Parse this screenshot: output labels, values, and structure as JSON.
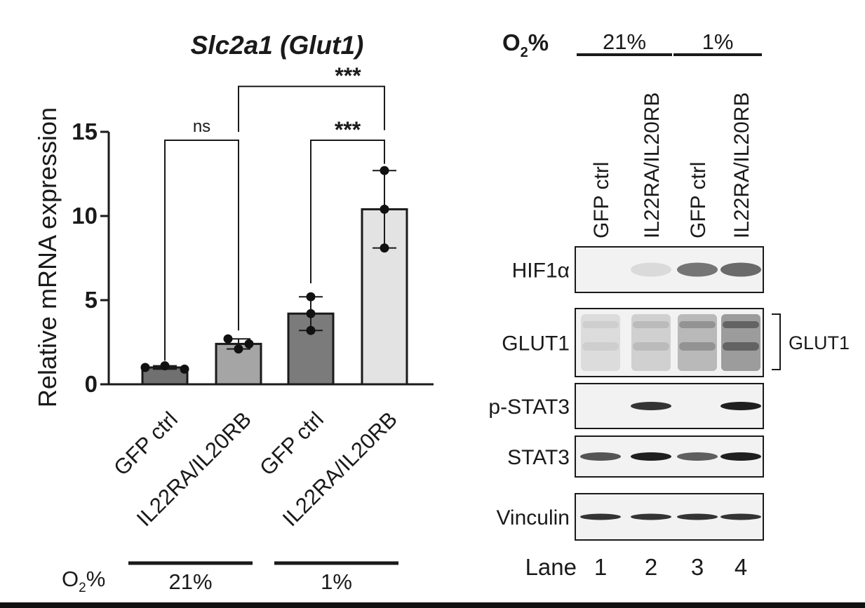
{
  "chart_data": [
    {
      "type": "bar",
      "title": "Slc2a1 (Glut1)",
      "ylabel": "Relative mRNA expression",
      "ylim": [
        0,
        15
      ],
      "yticks": [
        0,
        5,
        10,
        15
      ],
      "grid": false,
      "categories": [
        "GFP ctrl",
        "IL22RA/IL20RB",
        "GFP ctrl",
        "IL22RA/IL20RB"
      ],
      "values": [
        1.0,
        2.4,
        4.2,
        10.4
      ],
      "error_high": [
        1.1,
        2.7,
        5.2,
        12.7
      ],
      "error_low": [
        0.9,
        2.1,
        3.2,
        8.1
      ],
      "points": [
        [
          1.0,
          1.1,
          0.9
        ],
        [
          2.7,
          2.1,
          2.4
        ],
        [
          5.2,
          4.2,
          3.2
        ],
        [
          12.7,
          10.4,
          8.1
        ]
      ],
      "bar_colors": [
        "#707070",
        "#a5a5a5",
        "#7b7b7b",
        "#e3e3e3"
      ],
      "o2_label": "O",
      "o2_sub": "2",
      "o2_unit": "%",
      "groups": [
        {
          "label": "21%",
          "bars": [
            0,
            1
          ]
        },
        {
          "label": "1%",
          "bars": [
            2,
            3
          ]
        }
      ],
      "comparisons": [
        {
          "label": "ns",
          "from": 0,
          "to": 1
        },
        {
          "label": "***",
          "from": 2,
          "to": 3
        },
        {
          "label": "***",
          "from": 1,
          "to": 3
        }
      ]
    }
  ],
  "blot": {
    "o2_label": "O",
    "o2_sub": "2",
    "o2_unit": "%",
    "groups": [
      {
        "label": "21%",
        "lanes": [
          0,
          1
        ]
      },
      {
        "label": "1%",
        "lanes": [
          2,
          3
        ]
      }
    ],
    "lanes": [
      "GFP ctrl",
      "IL22RA/IL20RB",
      "GFP ctrl",
      "IL22RA/IL20RB"
    ],
    "lane_label": "Lane",
    "lane_numbers": [
      "1",
      "2",
      "3",
      "4"
    ],
    "rows": [
      {
        "label": "HIF1α",
        "intensity": [
          0.0,
          0.08,
          0.55,
          0.6
        ]
      },
      {
        "label": "GLUT1",
        "intensity": [
          0.15,
          0.25,
          0.45,
          0.7
        ]
      },
      {
        "label": "p-STAT3",
        "intensity": [
          0.0,
          0.85,
          0.0,
          0.95
        ]
      },
      {
        "label": "STAT3",
        "intensity": [
          0.7,
          0.95,
          0.65,
          0.95
        ]
      },
      {
        "label": "Vinculin",
        "intensity": [
          0.85,
          0.85,
          0.85,
          0.85
        ]
      }
    ],
    "bracket_label": "GLUT1"
  }
}
